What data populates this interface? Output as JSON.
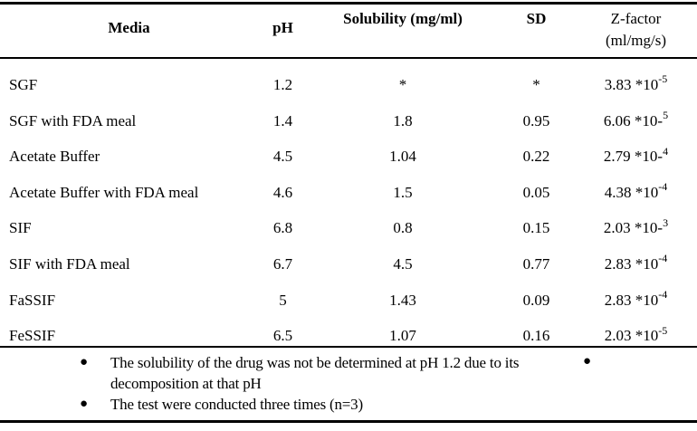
{
  "colors": {
    "text": "#000000",
    "background": "#ffffff",
    "rule": "#000000"
  },
  "table": {
    "headers": {
      "media": "Media",
      "ph": "pH",
      "solubility": "Solubility (mg/ml)",
      "sd": "SD",
      "z_factor_line1": "Z-factor",
      "z_factor_line2": "(ml/mg/s)"
    },
    "rows": [
      {
        "media": "SGF",
        "ph": "1.2",
        "solubility": "*",
        "sd": "*",
        "z_base": "3.83 *10",
        "z_sup": "-5"
      },
      {
        "media": "SGF with FDA meal",
        "ph": "1.4",
        "solubility": "1.8",
        "sd": "0.95",
        "z_base": "6.06 *10-",
        "z_sup": "5"
      },
      {
        "media": "Acetate Buffer",
        "ph": "4.5",
        "solubility": "1.04",
        "sd": "0.22",
        "z_base": "2.79 *10-",
        "z_sup": "4"
      },
      {
        "media": "Acetate Buffer with FDA meal",
        "ph": "4.6",
        "solubility": "1.5",
        "sd": "0.05",
        "z_base": "4.38 *10",
        "z_sup": "-4"
      },
      {
        "media": "SIF",
        "ph": "6.8",
        "solubility": "0.8",
        "sd": "0.15",
        "z_base": "2.03 *10-",
        "z_sup": "3"
      },
      {
        "media": "SIF with FDA meal",
        "ph": "6.7",
        "solubility": "4.5",
        "sd": "0.77",
        "z_base": "2.83 *10",
        "z_sup": "-4"
      },
      {
        "media": "FaSSIF",
        "ph": "5",
        "solubility": "1.43",
        "sd": "0.09",
        "z_base": "2.83 *10",
        "z_sup": "-4"
      },
      {
        "media": "FeSSIF",
        "ph": "6.5",
        "solubility": "1.07",
        "sd": "0.16",
        "z_base": "2.03 *10",
        "z_sup": "-5"
      }
    ]
  },
  "footnotes": {
    "bullet_glyph": "●",
    "note1": "The solubility of the drug was not be determined at pH 1.2 due to its decomposition at that pH",
    "note2": "The test were conducted three times (n=3)",
    "right_bullet_glyph": "●"
  }
}
